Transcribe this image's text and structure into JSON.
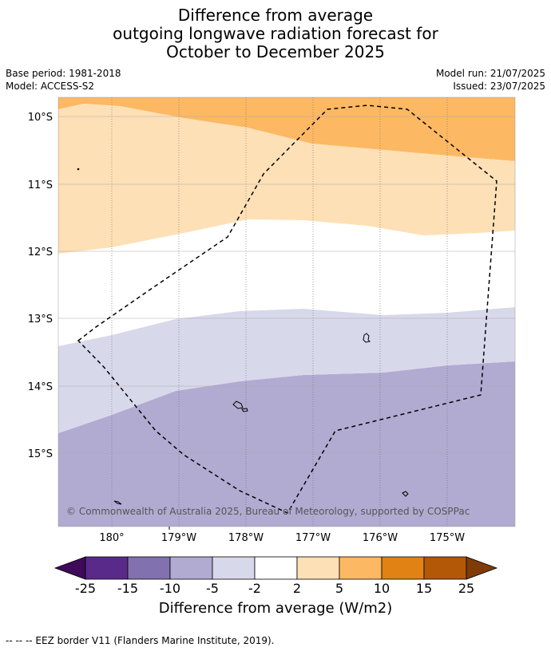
{
  "title": {
    "line1": "Difference from average",
    "line2": "outgoing longwave radiation forecast for",
    "line3": "October to December 2025"
  },
  "meta": {
    "base_period": "Base period: 1981-2018",
    "model": "Model: ACCESS-S2",
    "model_run": "Model run: 21/07/2025",
    "issued": "Issued: 23/07/2025"
  },
  "map": {
    "lon_labels": [
      "180°",
      "179°W",
      "178°W",
      "177°W",
      "176°W",
      "175°W"
    ],
    "lat_labels": [
      "10°S",
      "11°S",
      "12°S",
      "13°S",
      "14°S",
      "15°S"
    ],
    "copyright": "© Commonwealth of Australia 2025, Bureau of Meteorology, supported by COSPPac"
  },
  "colorbar": {
    "ticks": [
      "-25",
      "-15",
      "-10",
      "-5",
      "-2",
      "2",
      "5",
      "10",
      "15",
      "25"
    ],
    "colors": [
      "#3f0a5a",
      "#5a2a8a",
      "#8171ae",
      "#b1abd2",
      "#d8d8eb",
      "#ffffff",
      "#fee0b6",
      "#fdb863",
      "#e08214",
      "#b35806",
      "#7f3b08"
    ],
    "label": "Difference from average (W/m2)"
  },
  "footnote": "-- -- -- EEZ border V11 (Flanders Marine Institute, 2019)."
}
